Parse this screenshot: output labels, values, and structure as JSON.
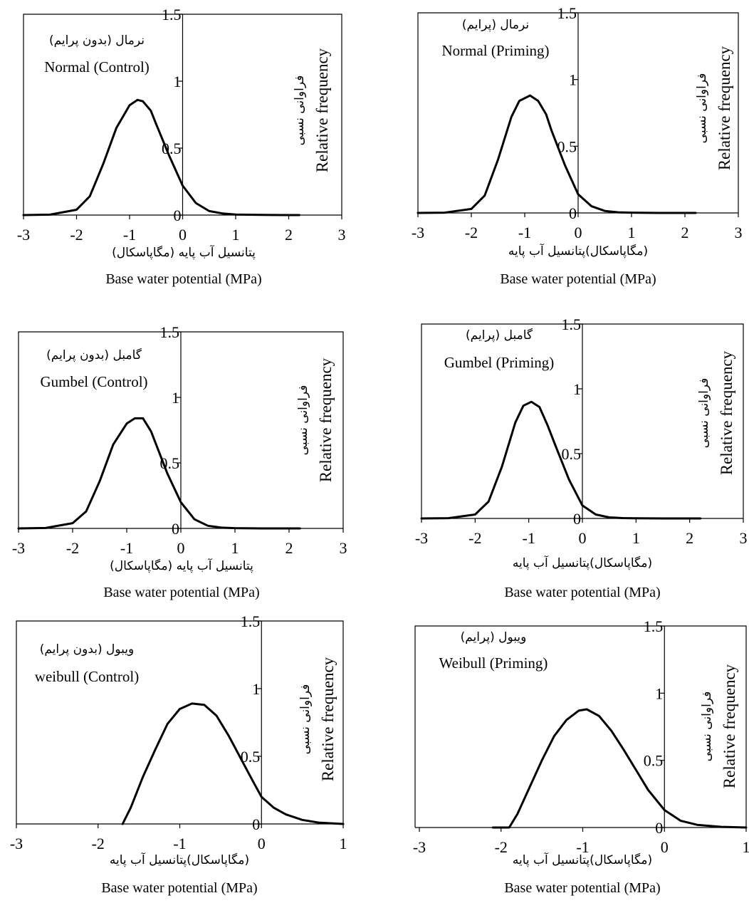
{
  "chart_data": [
    {
      "type": "line",
      "fa_label": "نرمال (بدون پرایم)",
      "en_label": "Normal (Control)",
      "xlabel_fa": "پتانسیل آب پایه (مگاپاسکال)",
      "xlabel_en": "Base water potential (MPa)",
      "ylabel_fa": "فراوانی نسبی",
      "ylabel_en": "Relative frequency",
      "xlim": [
        -3,
        3
      ],
      "ylim": [
        0,
        1.5
      ],
      "xticks": [
        "-3",
        "-2",
        "-1",
        "0",
        "1",
        "2",
        "3"
      ],
      "yticks": [
        "0",
        "0.5",
        "1",
        "1.5"
      ],
      "series": [
        {
          "x": [
            -3,
            -2.5,
            -2,
            -1.75,
            -1.5,
            -1.25,
            -1,
            -0.85,
            -0.75,
            -0.6,
            -0.5,
            -0.25,
            0,
            0.25,
            0.5,
            0.75,
            1,
            1.5,
            2,
            2.2
          ],
          "y": [
            0,
            0.003,
            0.04,
            0.14,
            0.38,
            0.65,
            0.82,
            0.86,
            0.85,
            0.78,
            0.68,
            0.44,
            0.22,
            0.09,
            0.03,
            0.012,
            0.004,
            0.001,
            0,
            0
          ]
        }
      ]
    },
    {
      "type": "line",
      "fa_label": "نرمال (پرایم)",
      "en_label": "Normal (Priming)",
      "xlabel_fa": "(مگاپاسکال)پتانسیل آب پایه",
      "xlabel_en": "Base water potential (MPa)",
      "ylabel_fa": "فراوانی نسبی",
      "ylabel_en": "Relative frequency",
      "xlim": [
        -3,
        3
      ],
      "ylim": [
        0,
        1.5
      ],
      "xticks": [
        "-3",
        "-2",
        "-1",
        "0",
        "1",
        "2",
        "3"
      ],
      "yticks": [
        "0",
        "0.5",
        "1",
        "1.5"
      ],
      "series": [
        {
          "x": [
            -3,
            -2.5,
            -2,
            -1.75,
            -1.5,
            -1.25,
            -1.1,
            -0.9,
            -0.75,
            -0.6,
            -0.5,
            -0.25,
            0,
            0.25,
            0.5,
            0.75,
            1,
            1.5,
            2,
            2.2
          ],
          "y": [
            0,
            0.002,
            0.03,
            0.13,
            0.4,
            0.72,
            0.84,
            0.88,
            0.84,
            0.74,
            0.62,
            0.36,
            0.14,
            0.05,
            0.015,
            0.005,
            0.002,
            0,
            0,
            0
          ]
        }
      ]
    },
    {
      "type": "line",
      "fa_label": "گامبل (بدون پرایم)",
      "en_label": "Gumbel (Control)",
      "xlabel_fa": "پتانسیل آب پایه (مگاپاسکال)",
      "xlabel_en": "Base water potential (MPa)",
      "ylabel_fa": "فراوانی نسبی",
      "ylabel_en": "Relative frequency",
      "xlim": [
        -3,
        3
      ],
      "ylim": [
        0,
        1.5
      ],
      "xticks": [
        "-3",
        "-2",
        "-1",
        "0",
        "1",
        "2",
        "3"
      ],
      "yticks": [
        "0",
        "0.5",
        "1",
        "1.5"
      ],
      "series": [
        {
          "x": [
            -3,
            -2.5,
            -2,
            -1.75,
            -1.5,
            -1.25,
            -1,
            -0.85,
            -0.7,
            -0.55,
            -0.4,
            -0.25,
            0,
            0.25,
            0.5,
            0.75,
            1,
            1.5,
            2,
            2.2
          ],
          "y": [
            0,
            0.003,
            0.04,
            0.13,
            0.36,
            0.64,
            0.8,
            0.84,
            0.84,
            0.74,
            0.58,
            0.42,
            0.2,
            0.07,
            0.02,
            0.006,
            0.002,
            0,
            0,
            0
          ]
        }
      ]
    },
    {
      "type": "line",
      "fa_label": "گامبل (پرایم)",
      "en_label": "Gumbel (Priming)",
      "xlabel_fa": "(مگاپاسکال)پتانسیل آب پایه",
      "xlabel_en": "Base water potential (MPa)",
      "ylabel_fa": "فراوانی نسبی",
      "ylabel_en": "Relative frequency",
      "xlim": [
        -3,
        3
      ],
      "ylim": [
        0,
        1.5
      ],
      "xticks": [
        "-3",
        "-2",
        "-1",
        "0",
        "1",
        "2",
        "3"
      ],
      "yticks": [
        "0",
        "0.5",
        "1",
        "1.5"
      ],
      "series": [
        {
          "x": [
            -3,
            -2.5,
            -2,
            -1.75,
            -1.5,
            -1.25,
            -1.1,
            -0.95,
            -0.8,
            -0.65,
            -0.5,
            -0.25,
            0,
            0.25,
            0.5,
            0.75,
            1,
            1.5,
            2,
            2.2
          ],
          "y": [
            0,
            0.002,
            0.03,
            0.13,
            0.4,
            0.74,
            0.87,
            0.9,
            0.86,
            0.72,
            0.56,
            0.3,
            0.1,
            0.03,
            0.008,
            0.003,
            0.001,
            0,
            0,
            0
          ]
        }
      ]
    },
    {
      "type": "line",
      "fa_label": "ویبول (بدون پرایم)",
      "en_label": "weibull (Control)",
      "xlabel_fa": "(مگاپاسکال)پتانسیل آب پایه",
      "xlabel_en": "Base water potential (MPa)",
      "ylabel_fa": "فراوانی نسبی",
      "ylabel_en": "Relative frequency",
      "xlim": [
        -3,
        1
      ],
      "ylim": [
        0,
        1.5
      ],
      "xticks": [
        "-3",
        "-2",
        "-1",
        "0",
        "1"
      ],
      "yticks": [
        "0",
        "0.5",
        "1",
        "1.5"
      ],
      "series": [
        {
          "x": [
            -1.7,
            -1.6,
            -1.45,
            -1.3,
            -1.15,
            -1,
            -0.85,
            -0.7,
            -0.55,
            -0.4,
            -0.25,
            -0.1,
            0,
            0.15,
            0.3,
            0.5,
            0.7,
            1
          ],
          "y": [
            0,
            0.12,
            0.35,
            0.55,
            0.74,
            0.85,
            0.89,
            0.88,
            0.8,
            0.65,
            0.48,
            0.31,
            0.2,
            0.12,
            0.07,
            0.03,
            0.01,
            0
          ]
        }
      ]
    },
    {
      "type": "line",
      "fa_label": "ویبول (پرایم)",
      "en_label": "Weibull (Priming)",
      "xlabel_fa": "(مگاپاسکال)پتانسیل آب پایه",
      "xlabel_en": "Base water potential (MPa)",
      "ylabel_fa": "فراوانی نسبی",
      "ylabel_en": "Relative frequency",
      "xlim": [
        -3,
        1
      ],
      "ylim": [
        0,
        1.5
      ],
      "xticks": [
        "-3",
        "-2",
        "-1",
        "0",
        "1"
      ],
      "yticks": [
        "0",
        "0.5",
        "1",
        "1.5"
      ],
      "series": [
        {
          "x": [
            -2.1,
            -1.9,
            -1.8,
            -1.65,
            -1.5,
            -1.35,
            -1.2,
            -1.05,
            -0.95,
            -0.8,
            -0.65,
            -0.5,
            -0.35,
            -0.2,
            0,
            0.2,
            0.4,
            0.7,
            1
          ],
          "y": [
            0,
            0,
            0.1,
            0.3,
            0.5,
            0.68,
            0.8,
            0.87,
            0.88,
            0.83,
            0.72,
            0.58,
            0.43,
            0.28,
            0.13,
            0.05,
            0.02,
            0.005,
            0
          ]
        }
      ]
    }
  ]
}
